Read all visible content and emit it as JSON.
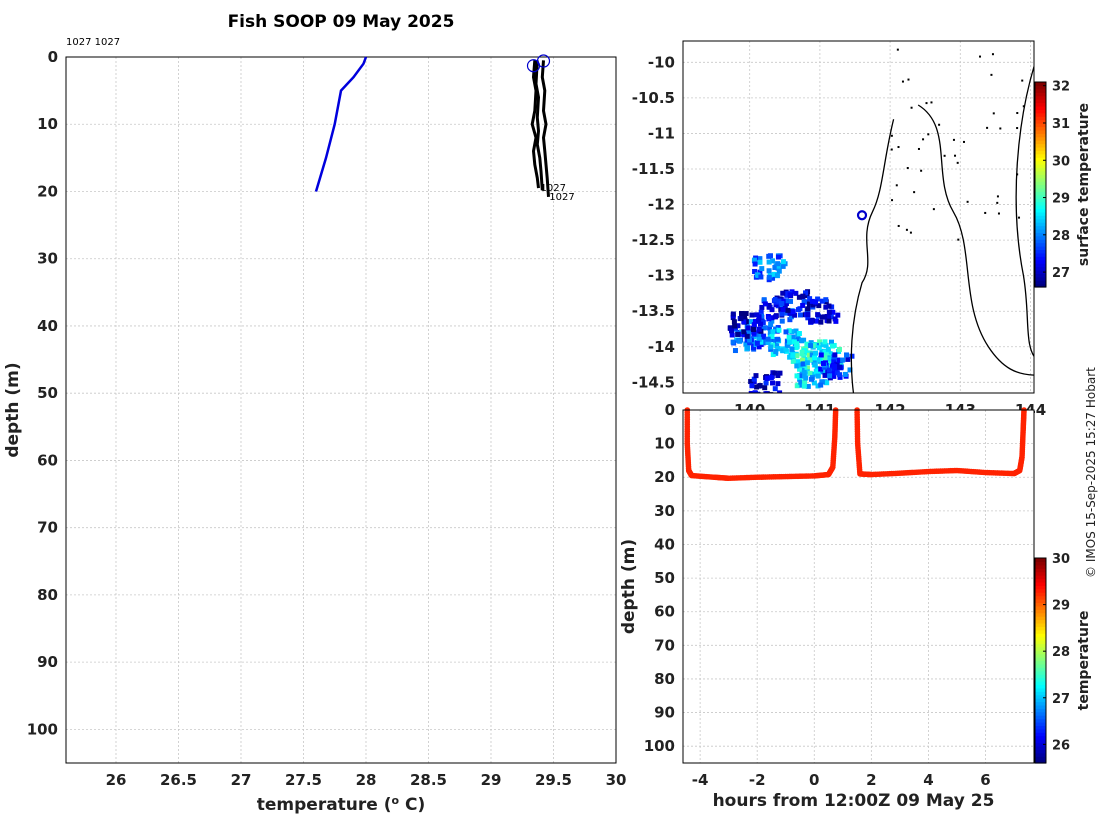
{
  "title": "Fish SOOP 09 May 2025",
  "credit": "© IMOS 15-Sep-2025 15:27 Hobart",
  "colors": {
    "line_blue": "#0000dd",
    "profile_black": "#000000",
    "marker_blue": "#0000cc",
    "transect_orange": "#e07a00"
  },
  "chart_data": [
    {
      "id": "profile",
      "type": "line",
      "xlabel": "temperature (",
      "xlabel_sup": "o",
      "xlabel_tail": " C)",
      "ylabel": "depth (m)",
      "xlim": [
        25.6,
        30.0
      ],
      "ylim": [
        105,
        0
      ],
      "xticks": [
        "26",
        "26.5",
        "27",
        "27.5",
        "28",
        "28.5",
        "29",
        "29.5",
        "30"
      ],
      "xtick_values": [
        26,
        26.5,
        27,
        27.5,
        28,
        28.5,
        29,
        29.5,
        30
      ],
      "yticks": [
        0,
        10,
        20,
        30,
        40,
        50,
        60,
        70,
        80,
        90,
        100
      ],
      "grid": true,
      "top_label": "1027 1027",
      "annotations": [
        {
          "text": "1027",
          "x": 29.38,
          "y": 19.5
        },
        {
          "text": "1027",
          "x": 29.45,
          "y": 20.8
        }
      ],
      "series": [
        {
          "role": "blue",
          "x": [
            28.0,
            27.98,
            27.9,
            27.8,
            27.75,
            27.68,
            27.6
          ],
          "y": [
            0,
            1,
            3,
            5,
            10,
            15,
            20
          ]
        },
        {
          "role": "black",
          "x": [
            29.35,
            29.34,
            29.36,
            29.35,
            29.33,
            29.36,
            29.34,
            29.35,
            29.37,
            29.38
          ],
          "y": [
            0.5,
            3,
            5,
            8,
            10,
            12,
            14,
            16,
            18,
            19.5
          ]
        },
        {
          "role": "black",
          "x": [
            29.42,
            29.41,
            29.43,
            29.42,
            29.44,
            29.42,
            29.43,
            29.44,
            29.45,
            29.46
          ],
          "y": [
            0.5,
            3,
            5,
            8,
            10,
            12,
            14,
            16,
            18,
            20.8
          ]
        },
        {
          "role": "black",
          "x": [
            29.37,
            29.36,
            29.38,
            29.37,
            29.38,
            29.37,
            29.39,
            29.4,
            29.41
          ],
          "y": [
            0.5,
            4,
            6,
            9,
            11,
            13,
            15,
            17,
            19.8
          ]
        }
      ],
      "markers": [
        {
          "x": 29.34,
          "y": 1.3
        },
        {
          "x": 29.42,
          "y": 0.6
        }
      ]
    },
    {
      "id": "map",
      "type": "heatmap",
      "xlim": [
        139.05,
        144.05
      ],
      "ylim": [
        -14.65,
        -9.7
      ],
      "xticks": [
        "140",
        "141",
        "142",
        "143",
        "144"
      ],
      "xtick_values": [
        140,
        141,
        142,
        143,
        144
      ],
      "yticks": [
        "-10",
        "-10.5",
        "-11",
        "-11.5",
        "-12",
        "-12.5",
        "-13",
        "-13.5",
        "-14",
        "-14.5"
      ],
      "ytick_values": [
        -10,
        -10.5,
        -11,
        -11.5,
        -12,
        -12.5,
        -13,
        -13.5,
        -14,
        -14.5
      ],
      "grid": true,
      "colorbar_label": "surface temperature",
      "colorbar_ticks": [
        "27",
        "28",
        "29",
        "30",
        "31",
        "32"
      ],
      "colorbar_range": [
        26.6,
        32.1
      ],
      "vessel_position": {
        "lon": 141.6,
        "lat": -12.15
      },
      "patches": [
        {
          "lon": 139.95,
          "lat": -13.85,
          "value": 27.8
        },
        {
          "lon": 140.15,
          "lat": -13.75,
          "value": 28.0
        },
        {
          "lon": 140.45,
          "lat": -13.9,
          "value": 28.3
        },
        {
          "lon": 140.75,
          "lat": -14.0,
          "value": 28.6
        },
        {
          "lon": 140.9,
          "lat": -14.2,
          "value": 28.8
        },
        {
          "lon": 141.05,
          "lat": -14.05,
          "value": 28.5
        },
        {
          "lon": 140.35,
          "lat": -13.45,
          "value": 27.4
        },
        {
          "lon": 140.6,
          "lat": -13.35,
          "value": 27.2
        },
        {
          "lon": 140.25,
          "lat": -12.85,
          "value": 27.9
        },
        {
          "lon": 140.85,
          "lat": -14.35,
          "value": 28.4
        },
        {
          "lon": 141.2,
          "lat": -14.25,
          "value": 27.5
        },
        {
          "lon": 140.2,
          "lat": -14.5,
          "value": 27.0
        },
        {
          "lon": 139.9,
          "lat": -13.65,
          "value": 26.8
        },
        {
          "lon": 141.0,
          "lat": -13.45,
          "value": 27.1
        }
      ]
    },
    {
      "id": "transect",
      "type": "scatter",
      "xlabel": "hours from 12:00Z 09 May 25",
      "ylabel": "depth (m)",
      "xlim": [
        -4.6,
        7.7
      ],
      "ylim": [
        105,
        0
      ],
      "xticks": [
        "-4",
        "-2",
        "0",
        "2",
        "4",
        "6"
      ],
      "xtick_values": [
        -4,
        -2,
        0,
        2,
        4,
        6
      ],
      "yticks": [
        0,
        10,
        20,
        30,
        40,
        50,
        60,
        70,
        80,
        90,
        100
      ],
      "grid": true,
      "colorbar_label": "temperature",
      "colorbar_ticks": [
        "26",
        "27",
        "28",
        "29",
        "30"
      ],
      "colorbar_range": [
        25.6,
        30.0
      ],
      "segments": [
        {
          "x": [
            -4.45,
            -4.45,
            -4.4,
            -4.3,
            -3.5,
            -3.0,
            -2.0,
            -1.0,
            0.0,
            0.5,
            0.65,
            0.72,
            0.75
          ],
          "y": [
            0,
            10,
            18,
            19.5,
            20.0,
            20.3,
            20.0,
            19.8,
            19.6,
            19.2,
            17,
            8,
            0
          ],
          "value": 29.3
        },
        {
          "x": [
            1.5,
            1.52,
            1.6,
            2.0,
            3.0,
            4.0,
            5.0,
            6.0,
            7.0,
            7.2,
            7.28,
            7.32,
            7.35
          ],
          "y": [
            0,
            10,
            19.0,
            19.2,
            18.8,
            18.3,
            18.0,
            18.6,
            18.9,
            18.0,
            14,
            6,
            0
          ],
          "value": 29.3
        }
      ]
    }
  ]
}
